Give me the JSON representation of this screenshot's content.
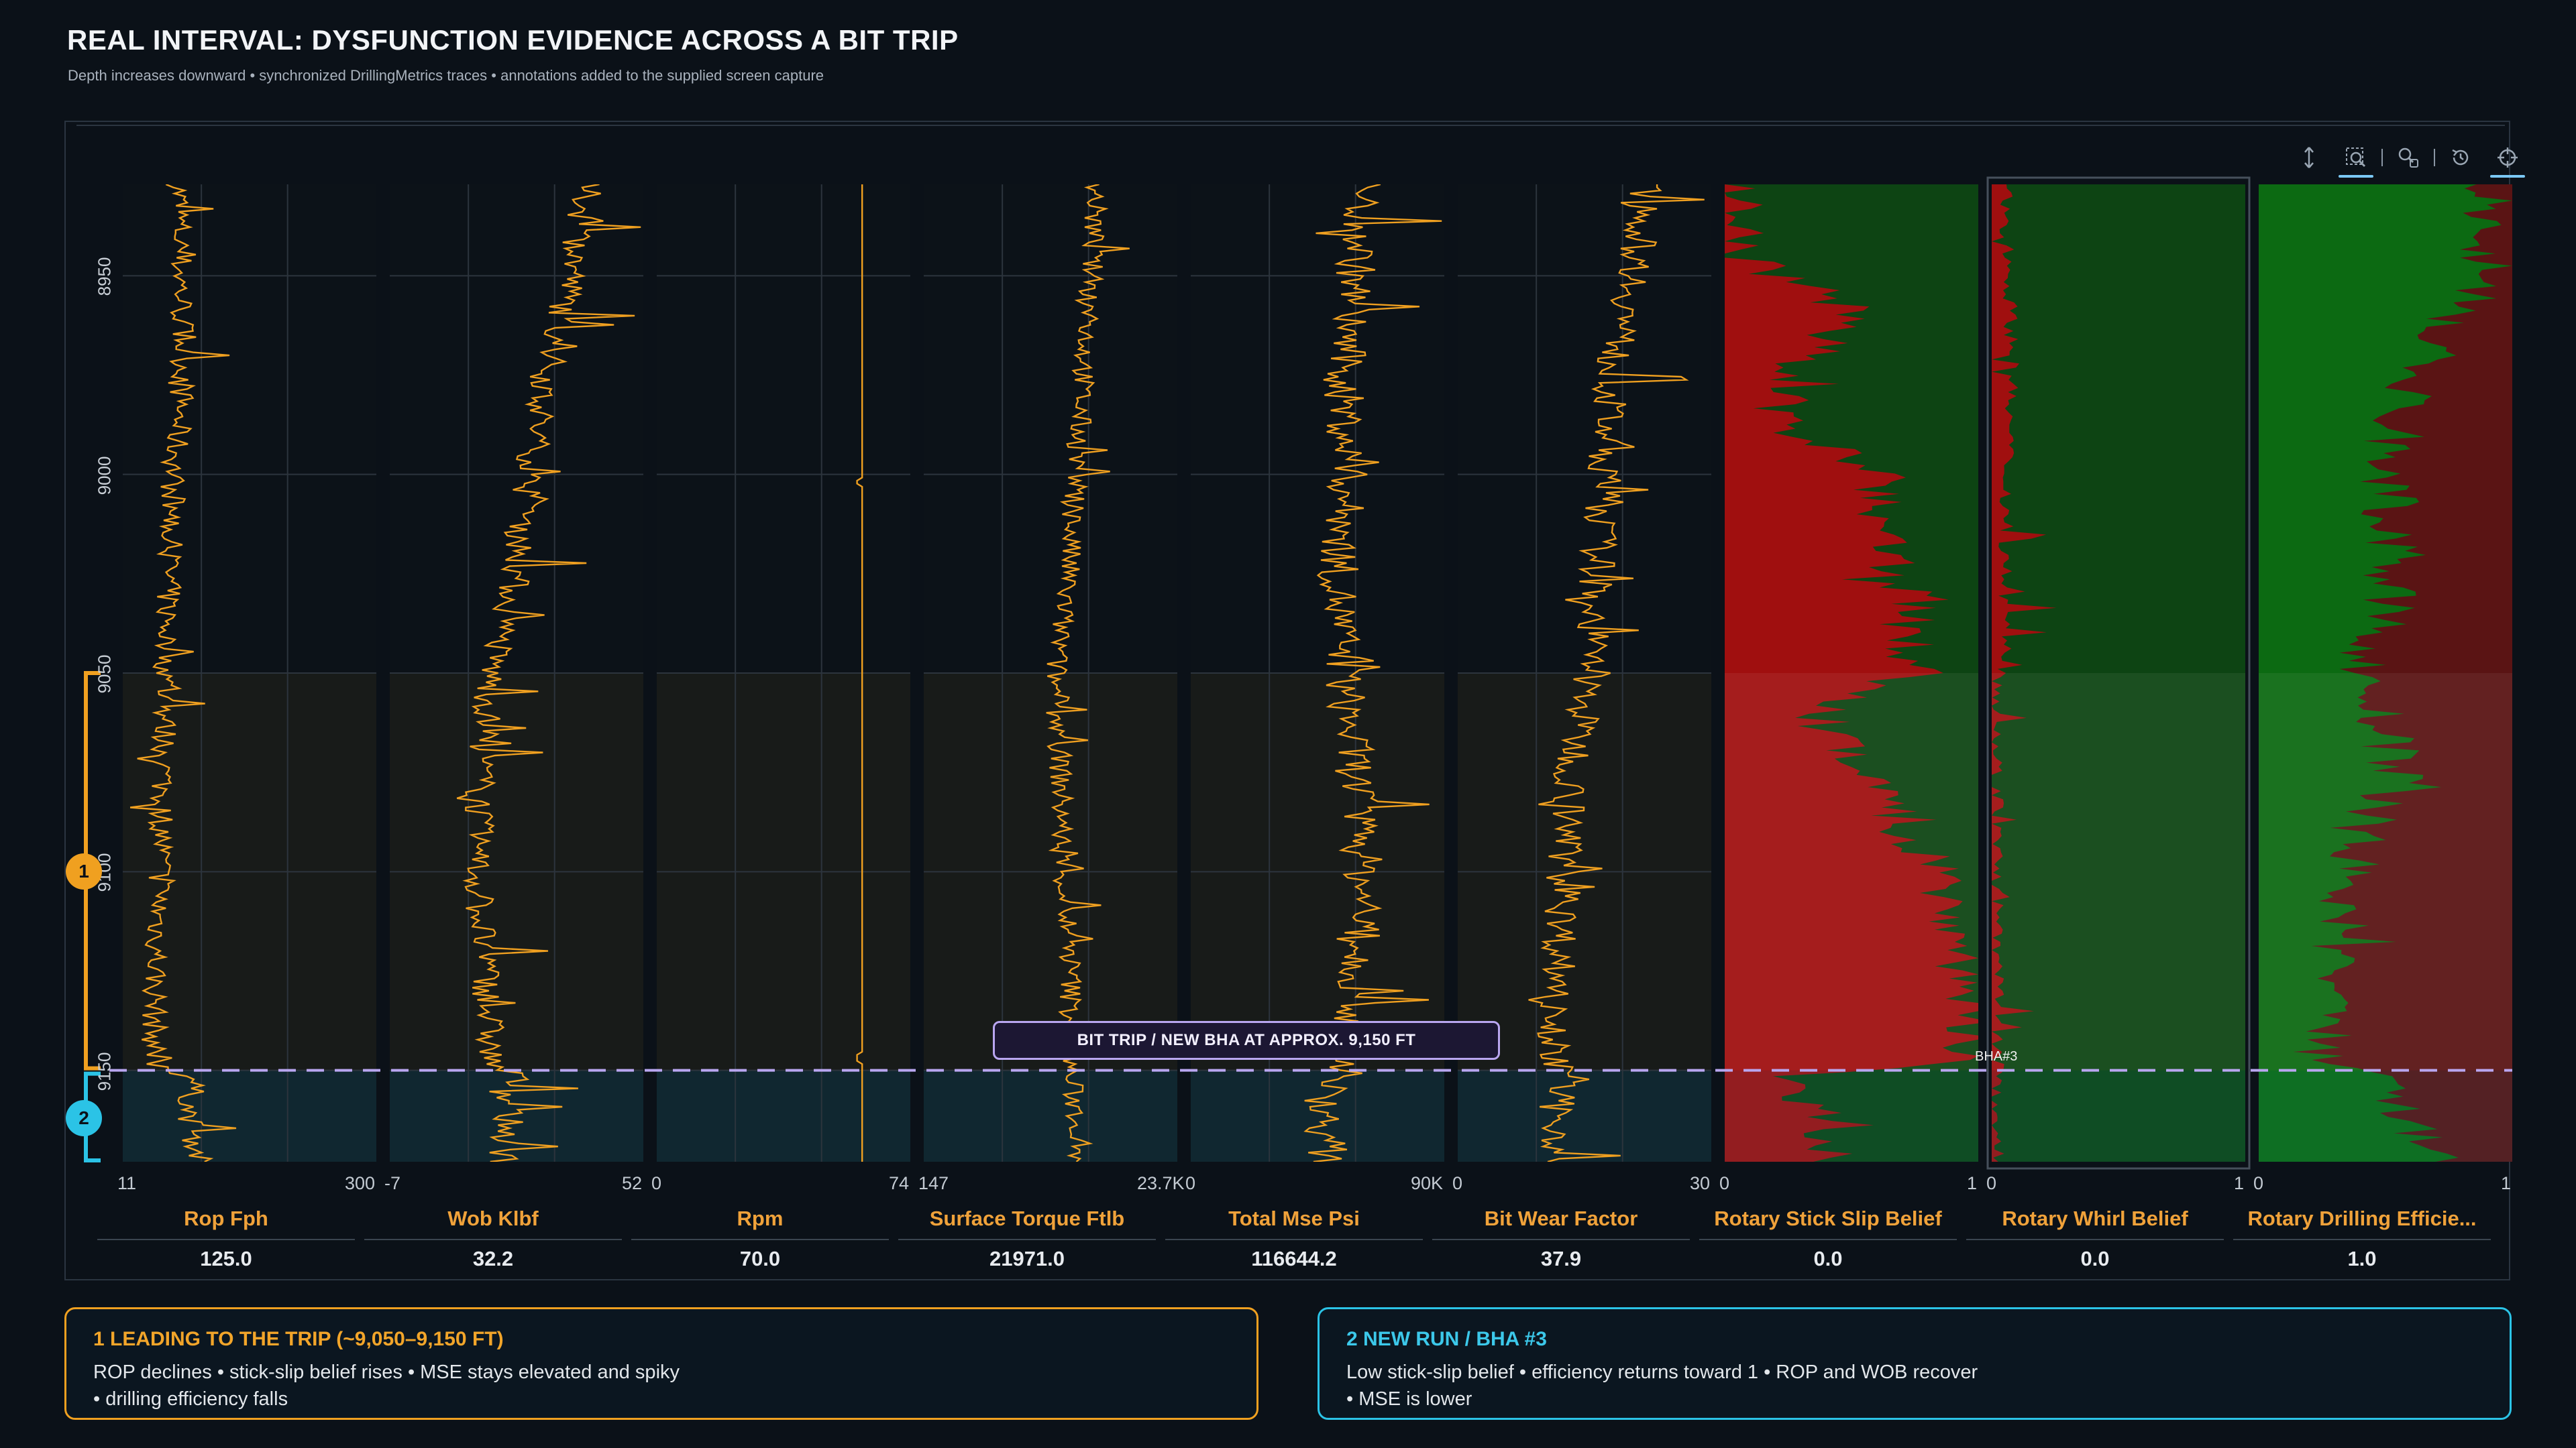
{
  "header": {
    "title": "REAL INTERVAL: DYSFUNCTION EVIDENCE ACROSS A BIT TRIP",
    "subtitle": "Depth increases downward  •  synchronized DrillingMetrics traces  •  annotations added to the supplied screen capture"
  },
  "toolbar": {
    "icons": [
      "vertical-pan-icon",
      "box-zoom-icon",
      "wheel-zoom-icon",
      "reset-icon",
      "crosshair-icon"
    ]
  },
  "colors": {
    "background": "#0b1118",
    "trace": "#f0a020",
    "belief_red": "#a00f0f",
    "belief_green": "#0d4413",
    "zone1": "#f0a020",
    "zone2": "#2bc3e6",
    "trip_line": "#b9a6f0"
  },
  "chart_data": {
    "type": "line",
    "depth_axis": {
      "ticks": [
        8950,
        9000,
        9050,
        9100,
        9150
      ],
      "range": [
        8927,
        9173
      ],
      "inverted": true
    },
    "zones": [
      {
        "id": "1",
        "from": 9050,
        "to": 9150
      },
      {
        "id": "2",
        "from": 9150,
        "to": 9173
      }
    ],
    "bit_trip_depth": 9150,
    "annotations": {
      "trip_label": "BIT TRIP / NEW BHA AT APPROX. 9,150 FT",
      "bha_label": "BHA#3"
    },
    "tracks": [
      {
        "name": "Rop Fph",
        "min_label": "11",
        "max_label": "300",
        "min": 11,
        "max": 300,
        "value": "125.0",
        "profile": [
          [
            8927,
            0.22
          ],
          [
            8950,
            0.23
          ],
          [
            8975,
            0.24
          ],
          [
            9000,
            0.2
          ],
          [
            9025,
            0.18
          ],
          [
            9050,
            0.17
          ],
          [
            9075,
            0.16
          ],
          [
            9100,
            0.15
          ],
          [
            9125,
            0.13
          ],
          [
            9148,
            0.12
          ],
          [
            9152,
            0.28
          ],
          [
            9160,
            0.26
          ],
          [
            9173,
            0.3
          ]
        ]
      },
      {
        "name": "Wob Klbf",
        "min_label": "-7",
        "max_label": "52",
        "min": -7,
        "max": 52,
        "value": "32.2",
        "profile": [
          [
            8927,
            0.78
          ],
          [
            8950,
            0.72
          ],
          [
            8975,
            0.62
          ],
          [
            9000,
            0.55
          ],
          [
            9025,
            0.5
          ],
          [
            9050,
            0.4
          ],
          [
            9075,
            0.36
          ],
          [
            9100,
            0.34
          ],
          [
            9125,
            0.38
          ],
          [
            9148,
            0.4
          ],
          [
            9152,
            0.5
          ],
          [
            9160,
            0.47
          ],
          [
            9173,
            0.45
          ]
        ]
      },
      {
        "name": "Rpm",
        "min_label": "0",
        "max_label": "74",
        "min": 0,
        "max": 74,
        "value": "70.0",
        "profile": [
          [
            8927,
            0.81
          ],
          [
            9173,
            0.81
          ]
        ]
      },
      {
        "name": "Surface Torque Ftlb",
        "min_label": "147",
        "max_label": "23.7K",
        "min": 147,
        "max": 23700,
        "value": "21971.0",
        "profile": [
          [
            8927,
            0.68
          ],
          [
            8950,
            0.66
          ],
          [
            8975,
            0.63
          ],
          [
            9000,
            0.6
          ],
          [
            9025,
            0.57
          ],
          [
            9050,
            0.52
          ],
          [
            9075,
            0.54
          ],
          [
            9100,
            0.55
          ],
          [
            9125,
            0.58
          ],
          [
            9148,
            0.58
          ],
          [
            9152,
            0.58
          ],
          [
            9160,
            0.6
          ],
          [
            9173,
            0.62
          ]
        ]
      },
      {
        "name": "Total Mse Psi",
        "min_label": "0",
        "max_label": "90K",
        "min": 0,
        "max": 90000,
        "value": "116644.2",
        "profile": [
          [
            8927,
            0.68
          ],
          [
            8950,
            0.65
          ],
          [
            8975,
            0.6
          ],
          [
            9000,
            0.62
          ],
          [
            9025,
            0.58
          ],
          [
            9050,
            0.6
          ],
          [
            9075,
            0.65
          ],
          [
            9100,
            0.68
          ],
          [
            9125,
            0.66
          ],
          [
            9148,
            0.62
          ],
          [
            9152,
            0.55
          ],
          [
            9160,
            0.52
          ],
          [
            9173,
            0.55
          ]
        ]
      },
      {
        "name": "Bit Wear Factor",
        "min_label": "0",
        "max_label": "30",
        "min": 0,
        "max": 30,
        "value": "37.9",
        "profile": [
          [
            8927,
            0.74
          ],
          [
            8950,
            0.7
          ],
          [
            8975,
            0.6
          ],
          [
            9000,
            0.58
          ],
          [
            9025,
            0.55
          ],
          [
            9050,
            0.52
          ],
          [
            9075,
            0.45
          ],
          [
            9100,
            0.42
          ],
          [
            9125,
            0.4
          ],
          [
            9148,
            0.38
          ],
          [
            9152,
            0.4
          ],
          [
            9160,
            0.39
          ],
          [
            9173,
            0.4
          ]
        ]
      },
      {
        "name": "Rotary Stick Slip Belief",
        "min_label": "0",
        "max_label": "1",
        "min": 0,
        "max": 1,
        "value": "0.0",
        "profile": [
          [
            8927,
            0.05
          ],
          [
            8945,
            0.05
          ],
          [
            8960,
            0.55
          ],
          [
            8975,
            0.2
          ],
          [
            8990,
            0.25
          ],
          [
            9000,
            0.65
          ],
          [
            9010,
            0.55
          ],
          [
            9025,
            0.7
          ],
          [
            9050,
            0.75
          ],
          [
            9060,
            0.35
          ],
          [
            9075,
            0.55
          ],
          [
            9090,
            0.72
          ],
          [
            9100,
            0.85
          ],
          [
            9125,
            0.95
          ],
          [
            9148,
            0.98
          ],
          [
            9152,
            0.2
          ],
          [
            9160,
            0.35
          ],
          [
            9173,
            0.4
          ]
        ]
      },
      {
        "name": "Rotary Whirl Belief",
        "min_label": "0",
        "max_label": "1",
        "min": 0,
        "max": 1,
        "value": "0.0",
        "profile": [
          [
            8927,
            0.05
          ],
          [
            8950,
            0.07
          ],
          [
            8970,
            0.08
          ],
          [
            9000,
            0.06
          ],
          [
            9050,
            0.05
          ],
          [
            9060,
            0.02
          ],
          [
            9173,
            0.02
          ]
        ]
      },
      {
        "name": "Rotary Drilling Efficie...",
        "min_label": "0",
        "max_label": "1",
        "min": 0,
        "max": 1,
        "value": "1.0",
        "profile": [
          [
            8927,
            0.92
          ],
          [
            8950,
            0.9
          ],
          [
            8975,
            0.6
          ],
          [
            9000,
            0.5
          ],
          [
            9025,
            0.55
          ],
          [
            9050,
            0.4
          ],
          [
            9075,
            0.55
          ],
          [
            9100,
            0.35
          ],
          [
            9125,
            0.3
          ],
          [
            9148,
            0.25
          ],
          [
            9152,
            0.65
          ],
          [
            9160,
            0.55
          ],
          [
            9173,
            0.7
          ]
        ]
      }
    ]
  },
  "notes": [
    {
      "id": "1",
      "title": "1  LEADING TO THE TRIP  (~9,050–9,150 FT)",
      "line1": "ROP declines • stick-slip belief rises • MSE stays elevated and spiky",
      "line2": "• drilling efficiency falls"
    },
    {
      "id": "2",
      "title": "2  NEW RUN / BHA #3",
      "line1": "Low stick-slip belief • efficiency returns toward 1 • ROP and WOB recover",
      "line2": "• MSE is lower"
    }
  ]
}
